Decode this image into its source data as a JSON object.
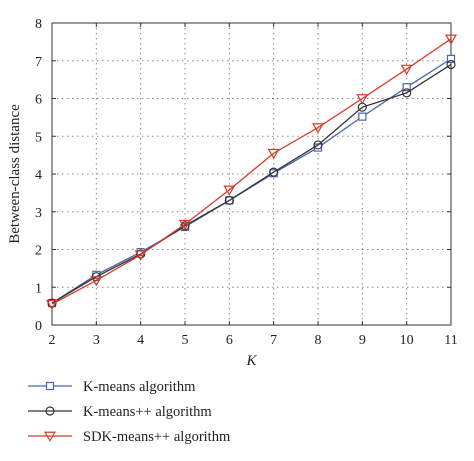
{
  "chart_data": {
    "type": "line",
    "xlabel": "K",
    "ylabel": "Between-class distance",
    "x": [
      2,
      3,
      4,
      5,
      6,
      7,
      8,
      9,
      10,
      11
    ],
    "xlim": [
      2,
      11
    ],
    "ylim": [
      0,
      8
    ],
    "xticks": [
      "2",
      "3",
      "4",
      "5",
      "6",
      "7",
      "8",
      "9",
      "10",
      "11"
    ],
    "yticks": [
      "0",
      "1",
      "2",
      "3",
      "4",
      "5",
      "6",
      "7",
      "8"
    ],
    "grid": true,
    "legend_position": "bottom",
    "series": [
      {
        "name": "K-means algorithm",
        "marker": "square",
        "color": "#4a63b0",
        "values": [
          0.58,
          1.33,
          1.93,
          2.6,
          3.3,
          4.02,
          4.7,
          5.52,
          6.3,
          7.05
        ]
      },
      {
        "name": "K-means++ algorithm",
        "marker": "circle",
        "color": "#333333",
        "values": [
          0.58,
          1.28,
          1.88,
          2.63,
          3.3,
          4.05,
          4.77,
          5.77,
          6.15,
          6.9
        ]
      },
      {
        "name": "SDK-means++ algorithm",
        "marker": "triangle-down",
        "color": "#d83a2a",
        "values": [
          0.55,
          1.18,
          1.86,
          2.67,
          3.58,
          4.55,
          5.23,
          6.0,
          6.78,
          7.58
        ]
      }
    ]
  }
}
